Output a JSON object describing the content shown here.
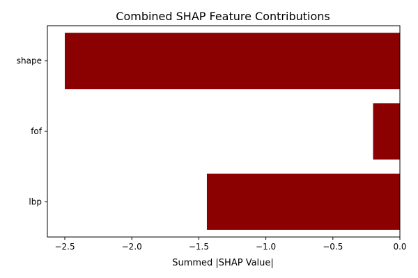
{
  "chart_data": {
    "type": "bar",
    "orientation": "horizontal",
    "title": "Combined SHAP Feature Contributions",
    "xlabel": "Summed |SHAP Value|",
    "ylabel": "",
    "categories": [
      "shape",
      "fof",
      "lbp"
    ],
    "values": [
      -2.5,
      -0.2,
      -1.44
    ],
    "xlim": [
      -2.63,
      0.0
    ],
    "xticks": [
      -2.5,
      -2.0,
      -1.5,
      -1.0,
      -0.5,
      0.0
    ],
    "xtick_labels": [
      "−2.5",
      "−2.0",
      "−1.5",
      "−1.0",
      "−0.5",
      "0.0"
    ],
    "bar_color": "#8b0000",
    "grid": false,
    "legend": "none"
  }
}
